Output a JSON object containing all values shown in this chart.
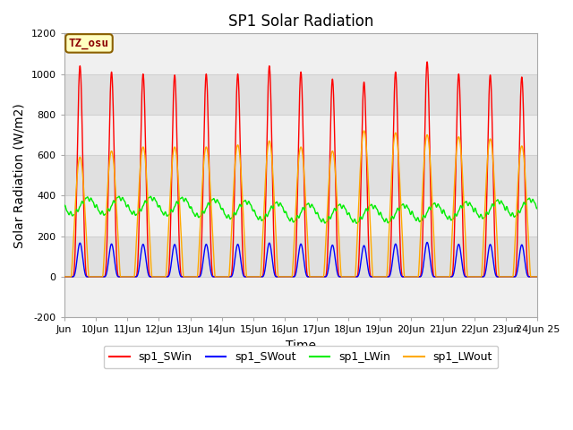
{
  "title": "SP1 Solar Radiation",
  "xlabel": "Time",
  "ylabel": "Solar Radiation (W/m2)",
  "ylim": [
    -200,
    1200
  ],
  "yticks": [
    -200,
    0,
    200,
    400,
    600,
    800,
    1000,
    1200
  ],
  "tz_label": "TZ_osu",
  "line_colors": {
    "sp1_SWin": "#ff0000",
    "sp1_SWout": "#0000ff",
    "sp1_LWin": "#00ee00",
    "sp1_LWout": "#ffaa00"
  },
  "legend_labels": [
    "sp1_SWin",
    "sp1_SWout",
    "sp1_LWin",
    "sp1_LWout"
  ],
  "bg_color": "#ffffff",
  "band_light": "#f0f0f0",
  "band_dark": "#e0e0e0",
  "grid_line_color": "#d0d0d0",
  "n_days": 15,
  "start_day": 10,
  "title_fontsize": 12,
  "axis_fontsize": 10,
  "tick_fontsize": 8,
  "sw_peaks": [
    1040,
    1010,
    1000,
    995,
    1000,
    1000,
    1040,
    1010,
    975,
    960,
    1010,
    1060,
    1000,
    995,
    985
  ],
  "lw_peaks": [
    590,
    620,
    640,
    640,
    640,
    650,
    670,
    640,
    620,
    720,
    710,
    700,
    690,
    680,
    645
  ]
}
